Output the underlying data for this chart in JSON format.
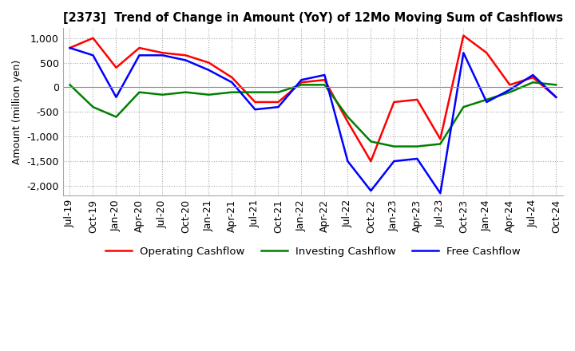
{
  "title": "[2373]  Trend of Change in Amount (YoY) of 12Mo Moving Sum of Cashflows",
  "ylabel": "Amount (million yen)",
  "xlabels": [
    "Jul-19",
    "Oct-19",
    "Jan-20",
    "Apr-20",
    "Jul-20",
    "Oct-20",
    "Jan-21",
    "Apr-21",
    "Jul-21",
    "Oct-21",
    "Jan-22",
    "Apr-22",
    "Jul-22",
    "Oct-22",
    "Jan-23",
    "Apr-23",
    "Jul-23",
    "Oct-23",
    "Jan-24",
    "Apr-24",
    "Jul-24",
    "Oct-24"
  ],
  "operating": [
    800,
    1000,
    400,
    800,
    700,
    650,
    500,
    200,
    -300,
    -300,
    100,
    150,
    -700,
    -1500,
    -300,
    -250,
    -1050,
    1050,
    700,
    50,
    200,
    -200
  ],
  "investing": [
    50,
    -400,
    -600,
    -100,
    -150,
    -100,
    -150,
    -100,
    -100,
    -100,
    50,
    50,
    -600,
    -1100,
    -1200,
    -1200,
    -1150,
    -400,
    -250,
    -100,
    100,
    50
  ],
  "free": [
    800,
    650,
    -200,
    650,
    650,
    550,
    350,
    100,
    -450,
    -400,
    150,
    250,
    -1500,
    -2100,
    -1500,
    -1450,
    -2150,
    700,
    -300,
    -50,
    250,
    -200
  ],
  "ylim": [
    -2200,
    1200
  ],
  "yticks": [
    -2000,
    -1500,
    -1000,
    -500,
    0,
    500,
    1000
  ],
  "colors": {
    "operating": "#FF0000",
    "investing": "#008000",
    "free": "#0000FF"
  },
  "legend_labels": [
    "Operating Cashflow",
    "Investing Cashflow",
    "Free Cashflow"
  ],
  "grid_color": "#AAAAAA",
  "grid_style": "dotted",
  "background_color": "#FFFFFF"
}
